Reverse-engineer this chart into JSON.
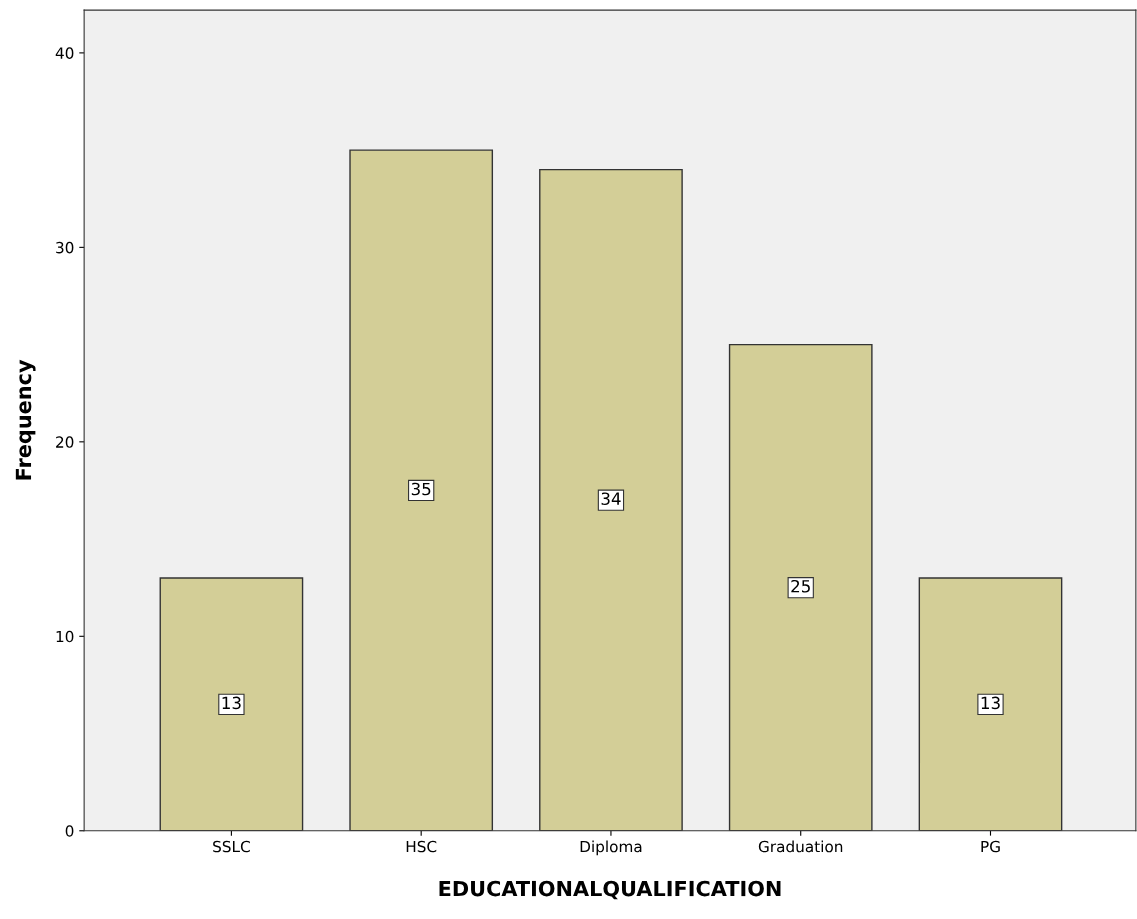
{
  "chart_data": {
    "type": "bar",
    "xlabel": "EDUCATIONALQUALIFICATION",
    "ylabel": "Frequency",
    "categories": [
      "SSLC",
      "HSC",
      "Diploma",
      "Graduation",
      "PG"
    ],
    "values": [
      13,
      35,
      34,
      25,
      13
    ],
    "color": "#d3ce97",
    "ylim": [
      0,
      42.2
    ],
    "yticks": [
      0,
      10,
      20,
      30,
      40
    ],
    "grid": false,
    "data_labels": true
  }
}
